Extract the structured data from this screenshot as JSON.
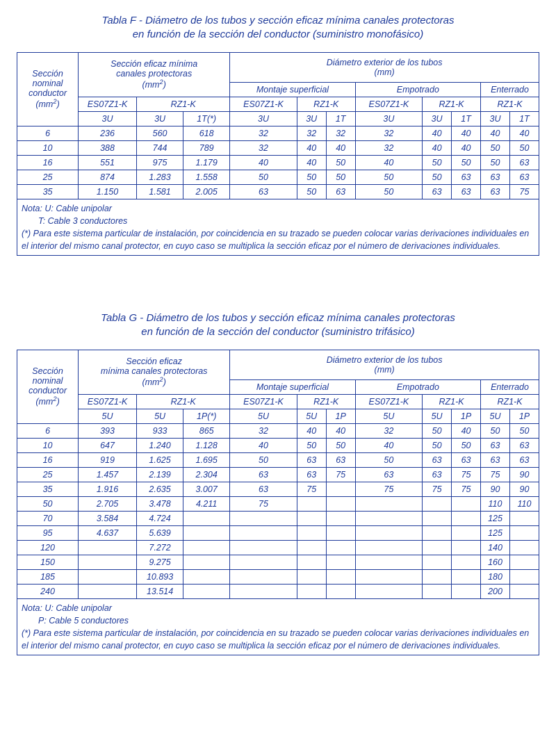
{
  "color_text": "#1e3a9a",
  "color_border": "#1e3a9a",
  "background": "#ffffff",
  "font": {
    "family": "Arial",
    "title_size": 15,
    "cell_size": 12.5,
    "italic": true
  },
  "F": {
    "title_l1": "Tabla F - Diámetro de los tubos y sección eficaz mínima canales protectoras",
    "title_l2": "en función de la sección del conductor (suministro monofásico)",
    "h_col1_l1": "Sección",
    "h_col1_l2": "nominal",
    "h_col1_l3": "conductor",
    "h_col1_l4": "(mm",
    "h_col1_sup": "2",
    "h_col1_l4b": ")",
    "h_eficaz_l1": "Sección eficaz mínima",
    "h_eficaz_l2": "canales protectoras",
    "h_eficaz_l3": "(mm",
    "h_eficaz_sup": "2",
    "h_eficaz_l3b": ")",
    "h_diam_l1": "Diámetro exterior de los tubos",
    "h_diam_l2": "(mm)",
    "h_montaje": "Montaje superficial",
    "h_empotrado": "Empotrado",
    "h_enterrado": "Enterrado",
    "es": "ES07Z1-K",
    "rz": "RZ1-K",
    "u3": "3U",
    "t1": "1T(*)",
    "t1s": "1T",
    "rows": [
      {
        "s": "6",
        "e": [
          "236",
          "560",
          "618"
        ],
        "m": [
          "32",
          "32",
          "32"
        ],
        "p": [
          "32",
          "40",
          "40"
        ],
        "n": [
          "40",
          "40"
        ]
      },
      {
        "s": "10",
        "e": [
          "388",
          "744",
          "789"
        ],
        "m": [
          "32",
          "40",
          "40"
        ],
        "p": [
          "32",
          "40",
          "40"
        ],
        "n": [
          "50",
          "50"
        ]
      },
      {
        "s": "16",
        "e": [
          "551",
          "975",
          "1.179"
        ],
        "m": [
          "40",
          "40",
          "50"
        ],
        "p": [
          "40",
          "50",
          "50"
        ],
        "n": [
          "50",
          "63"
        ]
      },
      {
        "s": "25",
        "e": [
          "874",
          "1.283",
          "1.558"
        ],
        "m": [
          "50",
          "50",
          "50"
        ],
        "p": [
          "50",
          "50",
          "63"
        ],
        "n": [
          "63",
          "63"
        ]
      },
      {
        "s": "35",
        "e": [
          "1.150",
          "1.581",
          "2.005"
        ],
        "m": [
          "63",
          "50",
          "63"
        ],
        "p": [
          "50",
          "63",
          "63"
        ],
        "n": [
          "63",
          "75"
        ]
      }
    ],
    "note1": "Nota: U: Cable unipolar",
    "note2": "T: Cable 3 conductores",
    "note3": "(*) Para este sistema particular de instalación, por coincidencia en su trazado se pueden colocar varias derivaciones individuales en el interior del mismo canal protector, en cuyo caso se multiplica la sección eficaz por el número de derivaciones individuales."
  },
  "G": {
    "title_l1": "Tabla G - Diámetro de los tubos y sección eficaz mínima canales protectoras",
    "title_l2": "en función de la sección del conductor (suministro trifásico)",
    "h_col1_l1": "Sección",
    "h_col1_l2": "nominal",
    "h_col1_l3": "conductor",
    "h_col1_l4": "(mm",
    "h_col1_sup": "2",
    "h_col1_l4b": ")",
    "h_eficaz_l1": "Sección eficaz",
    "h_eficaz_l2": "mínima canales protectoras",
    "h_eficaz_l3": "(mm",
    "h_eficaz_sup": "2",
    "h_eficaz_l3b": ")",
    "h_diam_l1": "Diámetro exterior de los tubos",
    "h_diam_l2": "(mm)",
    "h_montaje": "Montaje superficial",
    "h_empotrado": "Empotrado",
    "h_enterrado": "Enterrado",
    "es": "ES07Z1-K",
    "rz": "RZ1-K",
    "u5": "5U",
    "p1": "1P(*)",
    "p1s": "1P",
    "rows": [
      {
        "s": "6",
        "e": [
          "393",
          "933",
          "865"
        ],
        "m": [
          "32",
          "40",
          "40"
        ],
        "p": [
          "32",
          "50",
          "40"
        ],
        "n": [
          "50",
          "50"
        ]
      },
      {
        "s": "10",
        "e": [
          "647",
          "1.240",
          "1.128"
        ],
        "m": [
          "40",
          "50",
          "50"
        ],
        "p": [
          "40",
          "50",
          "50"
        ],
        "n": [
          "63",
          "63"
        ]
      },
      {
        "s": "16",
        "e": [
          "919",
          "1.625",
          "1.695"
        ],
        "m": [
          "50",
          "63",
          "63"
        ],
        "p": [
          "50",
          "63",
          "63"
        ],
        "n": [
          "63",
          "63"
        ]
      },
      {
        "s": "25",
        "e": [
          "1.457",
          "2.139",
          "2.304"
        ],
        "m": [
          "63",
          "63",
          "75"
        ],
        "p": [
          "63",
          "63",
          "75"
        ],
        "n": [
          "75",
          "90"
        ]
      },
      {
        "s": "35",
        "e": [
          "1.916",
          "2.635",
          "3.007"
        ],
        "m": [
          "63",
          "75",
          ""
        ],
        "p": [
          "75",
          "75",
          "75"
        ],
        "n": [
          "90",
          "90"
        ]
      },
      {
        "s": "50",
        "e": [
          "2.705",
          "3.478",
          "4.211"
        ],
        "m": [
          "75",
          "",
          ""
        ],
        "p": [
          "",
          "",
          ""
        ],
        "n": [
          "110",
          "110"
        ]
      },
      {
        "s": "70",
        "e": [
          "3.584",
          "4.724",
          ""
        ],
        "m": [
          "",
          "",
          ""
        ],
        "p": [
          "",
          "",
          ""
        ],
        "n": [
          "125",
          ""
        ]
      },
      {
        "s": "95",
        "e": [
          "4.637",
          "5.639",
          ""
        ],
        "m": [
          "",
          "",
          ""
        ],
        "p": [
          "",
          "",
          ""
        ],
        "n": [
          "125",
          ""
        ]
      },
      {
        "s": "120",
        "e": [
          "",
          "7.272",
          ""
        ],
        "m": [
          "",
          "",
          ""
        ],
        "p": [
          "",
          "",
          ""
        ],
        "n": [
          "140",
          ""
        ]
      },
      {
        "s": "150",
        "e": [
          "",
          "9.275",
          ""
        ],
        "m": [
          "",
          "",
          ""
        ],
        "p": [
          "",
          "",
          ""
        ],
        "n": [
          "160",
          ""
        ]
      },
      {
        "s": "185",
        "e": [
          "",
          "10.893",
          ""
        ],
        "m": [
          "",
          "",
          ""
        ],
        "p": [
          "",
          "",
          ""
        ],
        "n": [
          "180",
          ""
        ]
      },
      {
        "s": "240",
        "e": [
          "",
          "13.514",
          ""
        ],
        "m": [
          "",
          "",
          ""
        ],
        "p": [
          "",
          "",
          ""
        ],
        "n": [
          "200",
          ""
        ]
      }
    ],
    "note1": "Nota: U: Cable unipolar",
    "note2": "P: Cable 5 conductores",
    "note3": "(*) Para este sistema particular de instalación, por coincidencia en su trazado se pueden colocar varias derivaciones individuales en el interior del mismo canal protector, en cuyo caso se multiplica la sección eficaz por el número de derivaciones individuales."
  }
}
